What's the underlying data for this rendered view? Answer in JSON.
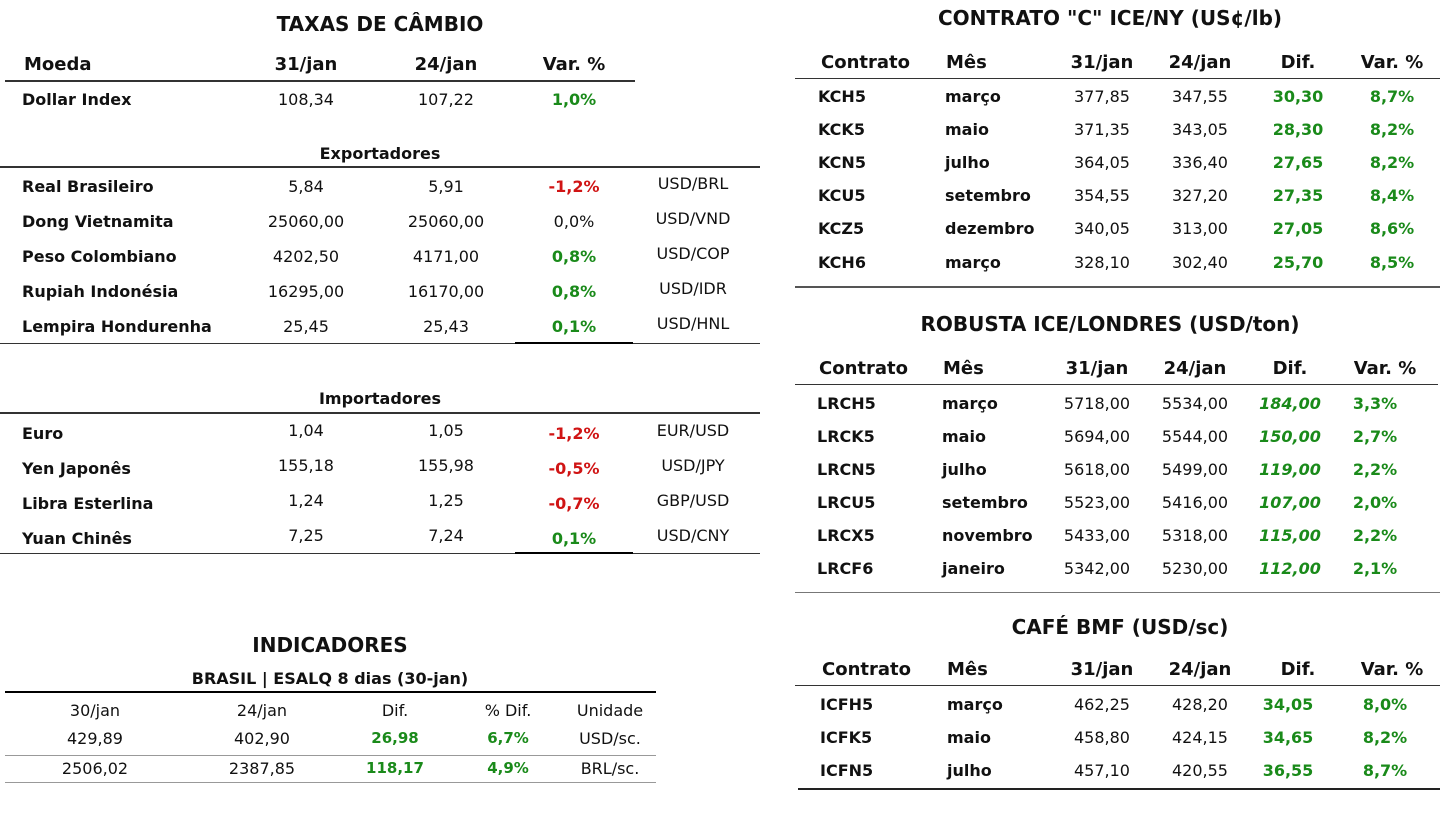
{
  "taxas": {
    "title": "TAXAS DE CÂMBIO",
    "headers": [
      "Moeda",
      "31/jan",
      "24/jan",
      "Var. %"
    ],
    "dollar_index": {
      "name": "Dollar Index",
      "v1": "108,34",
      "v2": "107,22",
      "var": "1,0%",
      "sign": "pos"
    },
    "exportadores_label": "Exportadores",
    "exportadores": [
      {
        "name": "Real Brasileiro",
        "v1": "5,84",
        "v2": "5,91",
        "var": "-1,2%",
        "sign": "neg",
        "pair": "USD/BRL"
      },
      {
        "name": "Dong Vietnamita",
        "v1": "25060,00",
        "v2": "25060,00",
        "var": "0,0%",
        "sign": "zero",
        "pair": "USD/VND"
      },
      {
        "name": "Peso Colombiano",
        "v1": "4202,50",
        "v2": "4171,00",
        "var": "0,8%",
        "sign": "pos",
        "pair": "USD/COP"
      },
      {
        "name": "Rupiah Indonésia",
        "v1": "16295,00",
        "v2": "16170,00",
        "var": "0,8%",
        "sign": "pos",
        "pair": "USD/IDR"
      },
      {
        "name": "Lempira Hondurenha",
        "v1": "25,45",
        "v2": "25,43",
        "var": "0,1%",
        "sign": "pos",
        "pair": "USD/HNL"
      }
    ],
    "importadores_label": "Importadores",
    "importadores": [
      {
        "name": "Euro",
        "v1": "1,04",
        "v2": "1,05",
        "var": "-1,2%",
        "sign": "neg",
        "pair": "EUR/USD"
      },
      {
        "name": "Yen Japonês",
        "v1": "155,18",
        "v2": "155,98",
        "var": "-0,5%",
        "sign": "neg",
        "pair": "USD/JPY"
      },
      {
        "name": "Libra Esterlina",
        "v1": "1,24",
        "v2": "1,25",
        "var": "-0,7%",
        "sign": "neg",
        "pair": "GBP/USD"
      },
      {
        "name": "Yuan Chinês",
        "v1": "7,25",
        "v2": "7,24",
        "var": "0,1%",
        "sign": "pos",
        "pair": "USD/CNY"
      }
    ]
  },
  "indicadores": {
    "title": "INDICADORES",
    "subtitle": "BRASIL | ESALQ 8 dias (30-jan)",
    "headers": [
      "30/jan",
      "24/jan",
      "Dif.",
      "% Dif.",
      "Unidade"
    ],
    "rows": [
      {
        "v1": "429,89",
        "v2": "402,90",
        "dif": "26,98",
        "pdif": "6,7%",
        "unit": "USD/sc."
      },
      {
        "v1": "2506,02",
        "v2": "2387,85",
        "dif": "118,17",
        "pdif": "4,9%",
        "unit": "BRL/sc."
      }
    ]
  },
  "contrato_c": {
    "title": "CONTRATO \"C\" ICE/NY (US¢/lb)",
    "headers": [
      "Contrato",
      "Mês",
      "31/jan",
      "24/jan",
      "Dif.",
      "Var. %"
    ],
    "rows": [
      {
        "code": "KCH5",
        "month": "março",
        "v1": "377,85",
        "v2": "347,55",
        "dif": "30,30",
        "var": "8,7%"
      },
      {
        "code": "KCK5",
        "month": "maio",
        "v1": "371,35",
        "v2": "343,05",
        "dif": "28,30",
        "var": "8,2%"
      },
      {
        "code": "KCN5",
        "month": "julho",
        "v1": "364,05",
        "v2": "336,40",
        "dif": "27,65",
        "var": "8,2%"
      },
      {
        "code": "KCU5",
        "month": "setembro",
        "v1": "354,55",
        "v2": "327,20",
        "dif": "27,35",
        "var": "8,4%"
      },
      {
        "code": "KCZ5",
        "month": "dezembro",
        "v1": "340,05",
        "v2": "313,00",
        "dif": "27,05",
        "var": "8,6%"
      },
      {
        "code": "KCH6",
        "month": "março",
        "v1": "328,10",
        "v2": "302,40",
        "dif": "25,70",
        "var": "8,5%"
      }
    ]
  },
  "robusta": {
    "title": "ROBUSTA ICE/LONDRES (USD/ton)",
    "headers": [
      "Contrato",
      "Mês",
      "31/jan",
      "24/jan",
      "Dif.",
      "Var. %"
    ],
    "rows": [
      {
        "code": "LRCH5",
        "month": "março",
        "v1": "5718,00",
        "v2": "5534,00",
        "dif": "184,00",
        "var": "3,3%"
      },
      {
        "code": "LRCK5",
        "month": "maio",
        "v1": "5694,00",
        "v2": "5544,00",
        "dif": "150,00",
        "var": "2,7%"
      },
      {
        "code": "LRCN5",
        "month": "julho",
        "v1": "5618,00",
        "v2": "5499,00",
        "dif": "119,00",
        "var": "2,2%"
      },
      {
        "code": "LRCU5",
        "month": "setembro",
        "v1": "5523,00",
        "v2": "5416,00",
        "dif": "107,00",
        "var": "2,0%"
      },
      {
        "code": "LRCX5",
        "month": "novembro",
        "v1": "5433,00",
        "v2": "5318,00",
        "dif": "115,00",
        "var": "2,2%"
      },
      {
        "code": "LRCF6",
        "month": "janeiro",
        "v1": "5342,00",
        "v2": "5230,00",
        "dif": "112,00",
        "var": "2,1%"
      }
    ]
  },
  "bmf": {
    "title": "CAFÉ BMF (USD/sc)",
    "headers": [
      "Contrato",
      "Mês",
      "31/jan",
      "24/jan",
      "Dif.",
      "Var. %"
    ],
    "rows": [
      {
        "code": "ICFH5",
        "month": "março",
        "v1": "462,25",
        "v2": "428,20",
        "dif": "34,05",
        "var": "8,0%"
      },
      {
        "code": "ICFK5",
        "month": "maio",
        "v1": "458,80",
        "v2": "424,15",
        "dif": "34,65",
        "var": "8,2%"
      },
      {
        "code": "ICFN5",
        "month": "julho",
        "v1": "457,10",
        "v2": "420,55",
        "dif": "36,55",
        "var": "8,7%"
      }
    ]
  },
  "colors": {
    "positive": "#1a8a1a",
    "negative": "#d01414"
  }
}
